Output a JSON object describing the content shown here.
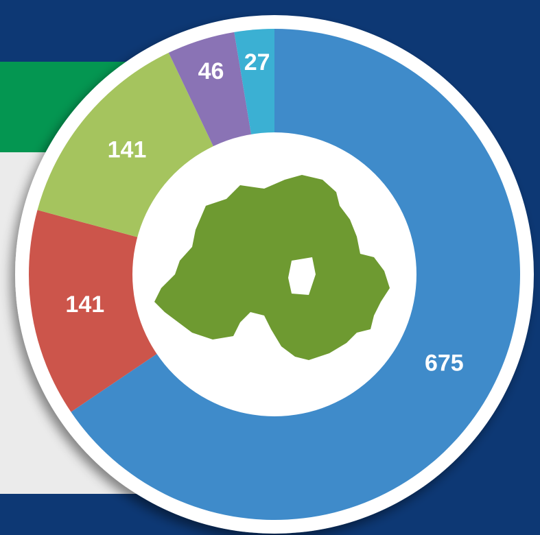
{
  "chart_data": {
    "type": "pie",
    "donut": true,
    "values": [
      675,
      141,
      141,
      46,
      27
    ],
    "colors": [
      "#3f8bca",
      "#cc554b",
      "#a5c45e",
      "#8a73b5",
      "#3bb0d3"
    ]
  }
}
